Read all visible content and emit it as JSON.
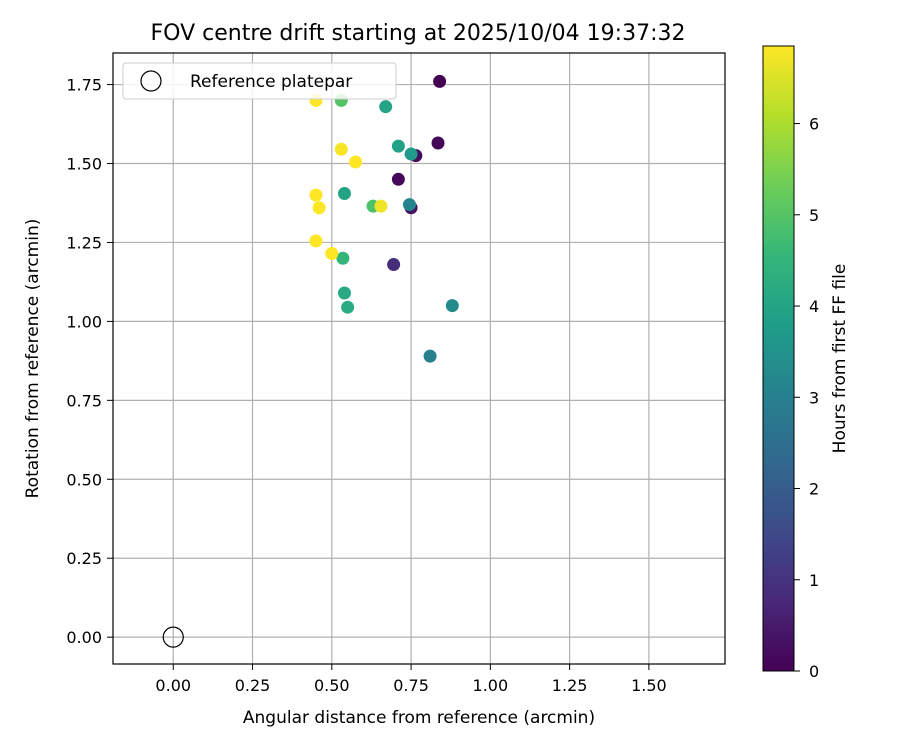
{
  "chart_data": {
    "type": "scatter",
    "title": "FOV centre drift starting at 2025/10/04 19:37:32",
    "xlabel": "Angular distance from reference (arcmin)",
    "ylabel": "Rotation from reference (arcmin)",
    "xlim": [
      -0.19,
      1.74
    ],
    "ylim": [
      -0.085,
      1.85
    ],
    "xticks": [
      0.0,
      0.25,
      0.5,
      0.75,
      1.0,
      1.25,
      1.5
    ],
    "xtick_labels": [
      "0.00",
      "0.25",
      "0.50",
      "0.75",
      "1.00",
      "1.25",
      "1.50"
    ],
    "yticks": [
      0.0,
      0.25,
      0.5,
      0.75,
      1.0,
      1.25,
      1.5,
      1.75
    ],
    "ytick_labels": [
      "0.00",
      "0.25",
      "0.50",
      "0.75",
      "1.00",
      "1.25",
      "1.50",
      "1.75"
    ],
    "grid": true,
    "legend": {
      "placement": "top-left",
      "entries": [
        {
          "label": "Reference platepar",
          "marker": "open-circle"
        }
      ]
    },
    "reference_point": {
      "x": 0.0,
      "y": 0.0
    },
    "colorbar": {
      "label": "Hours from first FF file",
      "colormap": "viridis",
      "range": [
        0,
        6.85
      ],
      "ticks": [
        0,
        1,
        2,
        3,
        4,
        5,
        6
      ],
      "tick_labels": [
        "0",
        "1",
        "2",
        "3",
        "4",
        "5",
        "6"
      ]
    },
    "points": [
      {
        "x": 0.84,
        "y": 1.76,
        "hours": 0.0
      },
      {
        "x": 0.835,
        "y": 1.565,
        "hours": 0.1
      },
      {
        "x": 0.765,
        "y": 1.525,
        "hours": 0.2
      },
      {
        "x": 0.71,
        "y": 1.45,
        "hours": 0.15
      },
      {
        "x": 0.75,
        "y": 1.36,
        "hours": 0.3
      },
      {
        "x": 0.695,
        "y": 1.18,
        "hours": 0.9
      },
      {
        "x": 0.745,
        "y": 1.37,
        "hours": 3.1
      },
      {
        "x": 0.81,
        "y": 0.89,
        "hours": 3.0
      },
      {
        "x": 0.88,
        "y": 1.05,
        "hours": 3.3
      },
      {
        "x": 0.75,
        "y": 1.53,
        "hours": 3.7
      },
      {
        "x": 0.71,
        "y": 1.555,
        "hours": 3.9
      },
      {
        "x": 0.67,
        "y": 1.68,
        "hours": 4.0
      },
      {
        "x": 0.54,
        "y": 1.405,
        "hours": 4.0
      },
      {
        "x": 0.54,
        "y": 1.09,
        "hours": 4.1
      },
      {
        "x": 0.55,
        "y": 1.045,
        "hours": 4.2
      },
      {
        "x": 0.535,
        "y": 1.2,
        "hours": 4.5
      },
      {
        "x": 0.63,
        "y": 1.365,
        "hours": 4.9
      },
      {
        "x": 0.53,
        "y": 1.7,
        "hours": 5.0
      },
      {
        "x": 0.655,
        "y": 1.365,
        "hours": 6.7
      },
      {
        "x": 0.45,
        "y": 1.7,
        "hours": 6.85
      },
      {
        "x": 0.53,
        "y": 1.545,
        "hours": 6.8
      },
      {
        "x": 0.575,
        "y": 1.505,
        "hours": 6.85
      },
      {
        "x": 0.45,
        "y": 1.4,
        "hours": 6.85
      },
      {
        "x": 0.46,
        "y": 1.36,
        "hours": 6.85
      },
      {
        "x": 0.45,
        "y": 1.255,
        "hours": 6.85
      },
      {
        "x": 0.5,
        "y": 1.215,
        "hours": 6.85
      }
    ]
  }
}
